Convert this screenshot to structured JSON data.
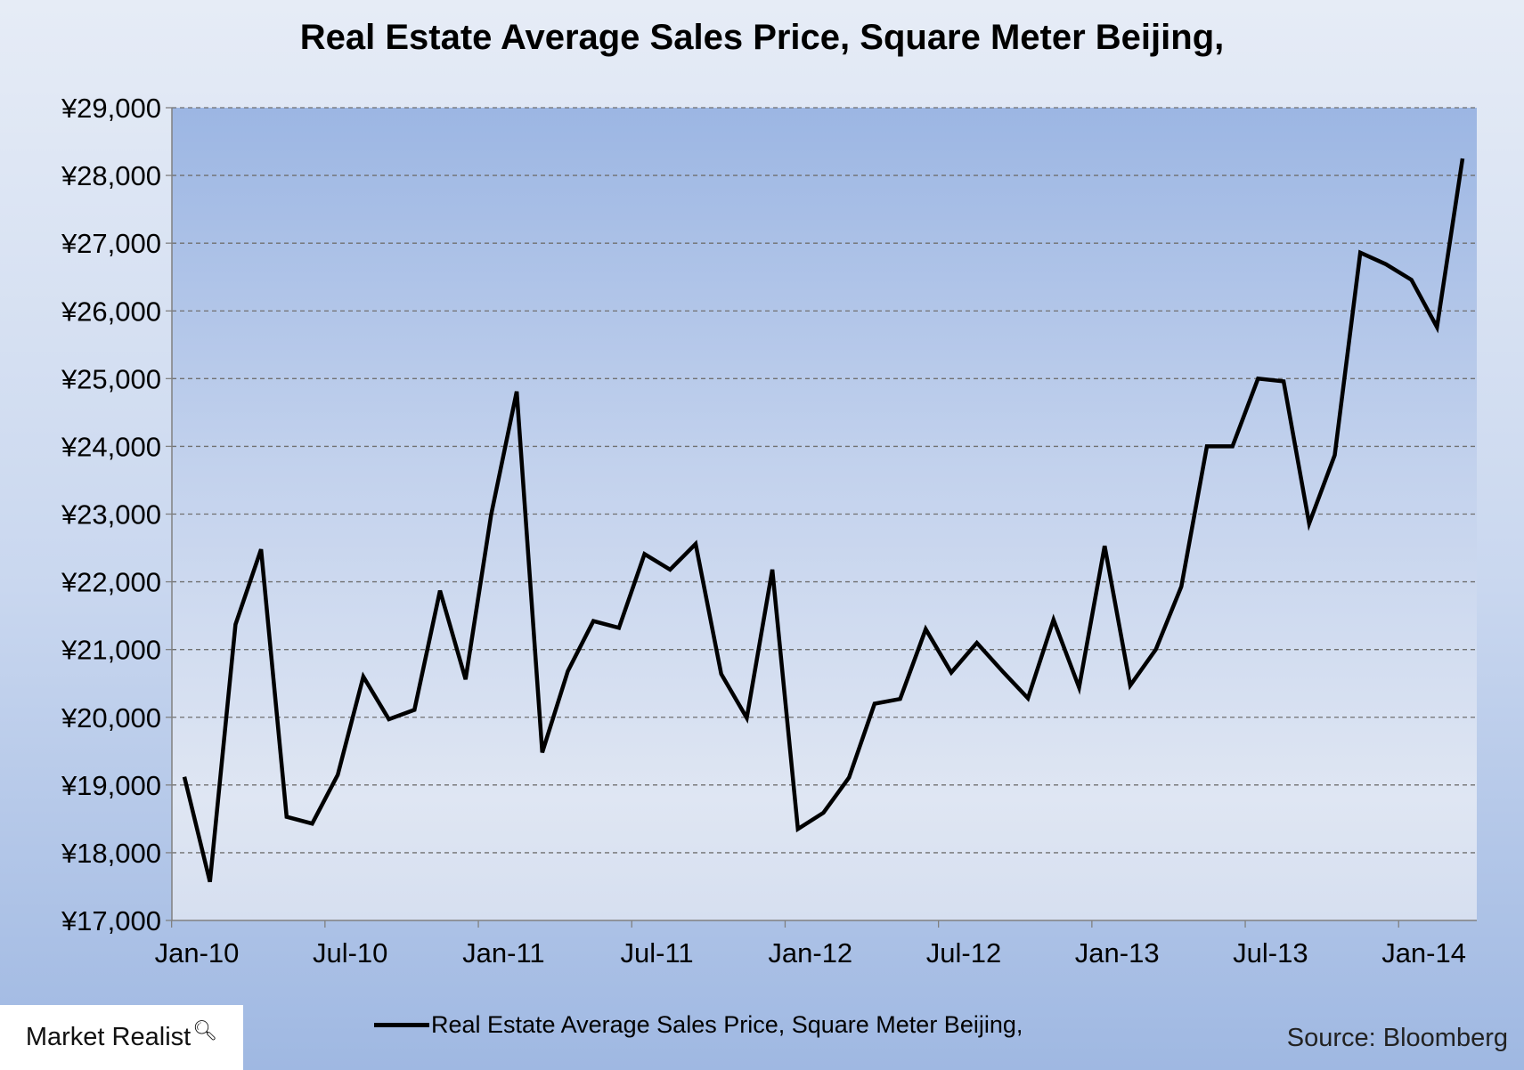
{
  "chart_data": {
    "type": "line",
    "title": "Real Estate Average Sales Price, Square Meter Beijing,",
    "xlabel": "",
    "ylabel": "",
    "ylim": [
      17000,
      29000
    ],
    "yticks": [
      "¥17,000",
      "¥18,000",
      "¥19,000",
      "¥20,000",
      "¥21,000",
      "¥22,000",
      "¥23,000",
      "¥24,000",
      "¥25,000",
      "¥26,000",
      "¥27,000",
      "¥28,000",
      "¥29,000"
    ],
    "xticks": [
      "Jan-10",
      "Jul-10",
      "Jan-11",
      "Jul-11",
      "Jan-12",
      "Jul-12",
      "Jan-13",
      "Jul-13",
      "Jan-14"
    ],
    "grid": true,
    "legend": "bottom",
    "series": [
      {
        "name": "Real Estate Average Sales Price, Square Meter Beijing,",
        "color": "#000000",
        "x": [
          "2010-01",
          "2010-02",
          "2010-03",
          "2010-04",
          "2010-05",
          "2010-06",
          "2010-07",
          "2010-08",
          "2010-09",
          "2010-10",
          "2010-11",
          "2010-12",
          "2011-01",
          "2011-02",
          "2011-03",
          "2011-04",
          "2011-05",
          "2011-06",
          "2011-07",
          "2011-08",
          "2011-09",
          "2011-10",
          "2011-11",
          "2011-12",
          "2012-01",
          "2012-02",
          "2012-03",
          "2012-04",
          "2012-05",
          "2012-06",
          "2012-07",
          "2012-08",
          "2012-09",
          "2012-10",
          "2012-11",
          "2012-12",
          "2013-01",
          "2013-02",
          "2013-03",
          "2013-04",
          "2013-05",
          "2013-06",
          "2013-07",
          "2013-08",
          "2013-09",
          "2013-10",
          "2013-11",
          "2013-12",
          "2014-01",
          "2014-02",
          "2014-03"
        ],
        "values": [
          19120,
          17570,
          21370,
          22480,
          18530,
          18430,
          19150,
          20600,
          19970,
          20110,
          21870,
          20560,
          22990,
          24810,
          19480,
          20680,
          21420,
          21320,
          22410,
          22180,
          22560,
          20640,
          19990,
          22180,
          18350,
          18590,
          19110,
          20200,
          20270,
          21300,
          20660,
          21100,
          20680,
          20280,
          21440,
          20440,
          22530,
          20470,
          21000,
          21930,
          24000,
          24000,
          25000,
          24960,
          22860,
          23870,
          26860,
          26690,
          26460,
          25760,
          28250
        ]
      }
    ]
  },
  "source": "Source: Bloomberg",
  "logo": {
    "text": "Market Realist",
    "icon": "magnifier-chart-icon"
  }
}
